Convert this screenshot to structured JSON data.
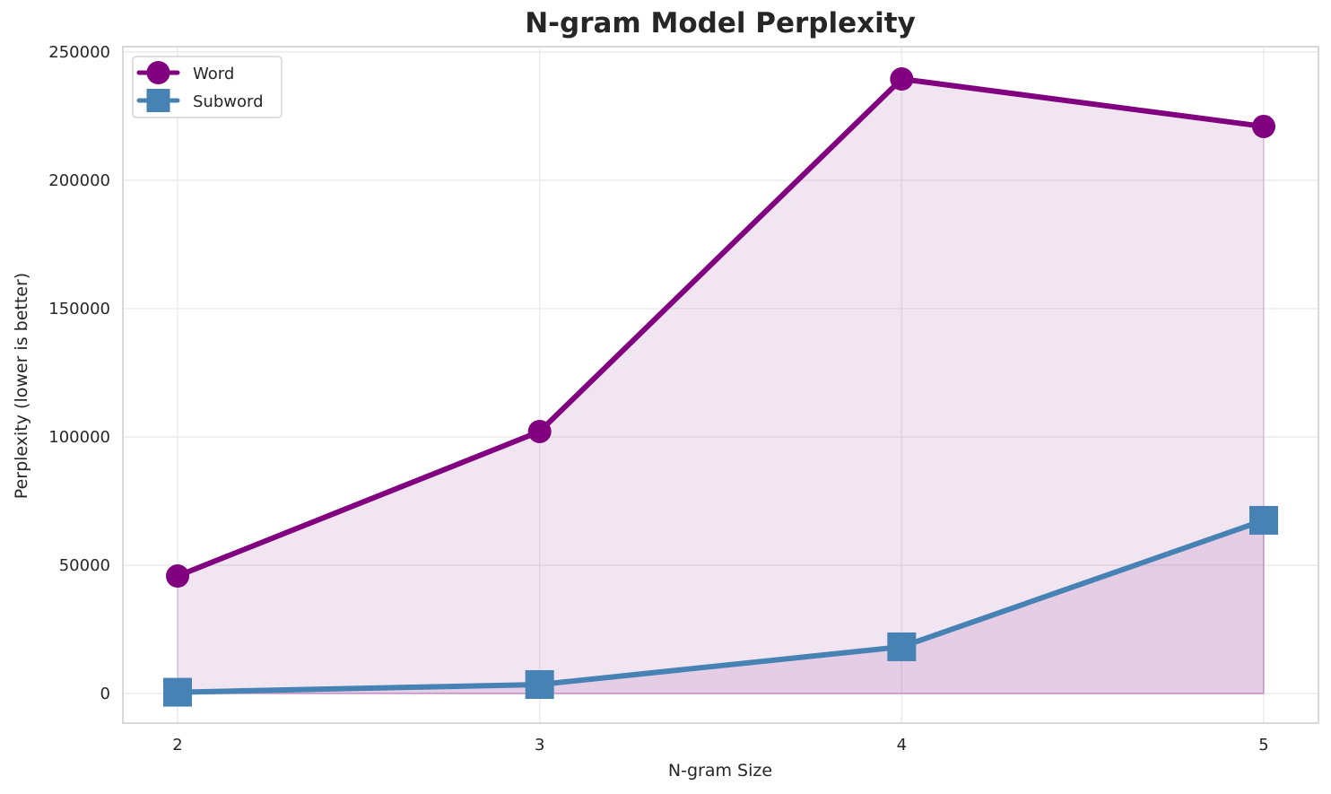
{
  "chart_data": {
    "type": "line",
    "title": "N-gram Model Perplexity",
    "xlabel": "N-gram Size",
    "ylabel": "Perplexity (lower is better)",
    "x": [
      2,
      3,
      4,
      5
    ],
    "series": [
      {
        "name": "Word",
        "values": [
          45800,
          102100,
          239500,
          221000
        ],
        "color": "#800080",
        "marker": "circle",
        "fill": true
      },
      {
        "name": "Subword",
        "values": [
          500,
          3500,
          18200,
          67500
        ],
        "color": "#4682b4",
        "marker": "square",
        "fill": true
      }
    ],
    "ylim": [
      -11500,
      252500
    ],
    "yticks": [
      0,
      50000,
      100000,
      150000,
      200000,
      250000
    ],
    "xticks": [
      2,
      3,
      4,
      5
    ],
    "grid": true,
    "legend_position": "upper left"
  },
  "legend": {
    "items": [
      "Word",
      "Subword"
    ]
  }
}
